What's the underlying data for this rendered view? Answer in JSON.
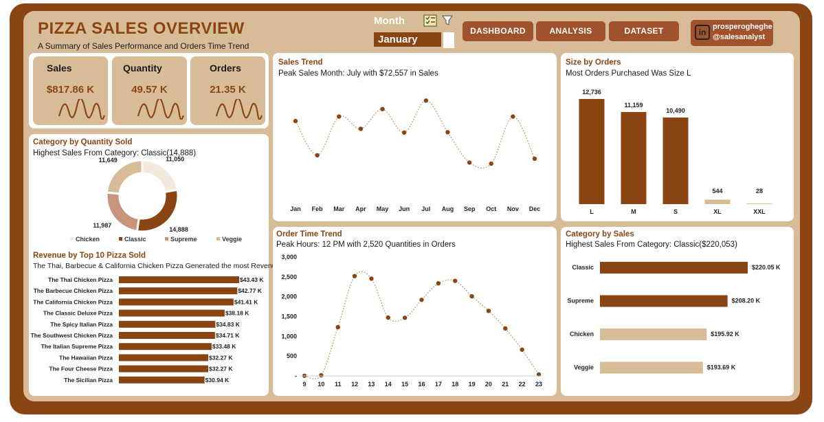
{
  "header": {
    "title": "PIZZA SALES OVERVIEW",
    "subtitle": "A Summary of Sales Performance and Orders Time Trend"
  },
  "slicer": {
    "label": "Month",
    "selected": "January"
  },
  "nav": {
    "dashboard": "DASHBOARD",
    "analysis": "ANALYSIS",
    "dataset": "DATASET"
  },
  "profile": {
    "name": "prosperogheghe",
    "handle": "@salesanalyst",
    "icon": "in"
  },
  "kpis": [
    {
      "label": "Sales",
      "value": "$817.86 K"
    },
    {
      "label": "Quantity",
      "value": "49.57 K"
    },
    {
      "label": "Orders",
      "value": "21.35 K"
    }
  ],
  "colors": {
    "brown": "#8b4513",
    "tan": "#d8bc97",
    "light_tan": "#f3e9dc",
    "mid_tan": "#c8a078"
  },
  "category_quantity": {
    "title": "Category by Quantity Sold",
    "subtitle": "Highest Sales From Category: Classic(14,888)"
  },
  "top10": {
    "title": "Revenue by Top  10 Pizza Sold",
    "subtitle": "The Thai, Barbecue & California Chicken Pizza Generated the most Revenue"
  },
  "sales_trend": {
    "title": "Sales Trend",
    "subtitle": "Peak Sales Month: July with $72,557 in Sales"
  },
  "order_time": {
    "title": "Order Time Trend",
    "subtitle": "Peak Hours: 12 PM with 2,520 Quantities in Orders"
  },
  "size_orders": {
    "title": "Size by Orders",
    "subtitle": "Most Orders Purchased Was Size L"
  },
  "category_sales": {
    "title": "Category by Sales",
    "subtitle": "Highest Sales From Category: Classic($220,053)"
  },
  "chart_data": [
    {
      "id": "category_quantity",
      "type": "pie",
      "categories": [
        "Chicken",
        "Classic",
        "Supreme",
        "Veggie"
      ],
      "values": [
        11050,
        14888,
        11987,
        11649
      ],
      "labels": [
        "11,050",
        "14,888",
        "11,987",
        "11,649"
      ],
      "colors": [
        "#f3e9dc",
        "#8b4513",
        "#c8957a",
        "#d8bc97"
      ],
      "legend": "bottom"
    },
    {
      "id": "top10",
      "type": "bar",
      "orientation": "horizontal",
      "categories": [
        "The Thai Chicken Pizza",
        "The Barbecue Chicken Pizza",
        "The California Chicken Pizza",
        "The Classic Deluxe Pizza",
        "The Spicy Italian Pizza",
        "The Southwest Chicken Pizza",
        "The Italian Supreme Pizza",
        "The Hawaiian Pizza",
        "The Four Cheese Pizza",
        "The Sicilian Pizza"
      ],
      "values": [
        43.43,
        42.77,
        41.41,
        38.18,
        34.83,
        34.71,
        33.48,
        32.27,
        32.27,
        30.94
      ],
      "labels": [
        "$43.43 K",
        "$42.77 K",
        "$41.41 K",
        "$38.18 K",
        "$34.83 K",
        "$34.71 K",
        "$33.48 K",
        "$32.27 K",
        "$32.27 K",
        "$30.94 K"
      ]
    },
    {
      "id": "sales_trend",
      "type": "line",
      "categories": [
        "Jan",
        "Feb",
        "Mar",
        "Apr",
        "May",
        "Jun",
        "Jul",
        "Aug",
        "Sep",
        "Oct",
        "Nov",
        "Dec"
      ],
      "values": [
        69793,
        65160,
        70397,
        68737,
        71403,
        68230,
        72557,
        68278,
        64180,
        64028,
        70395,
        64701
      ],
      "ylim": [
        62000,
        75000
      ],
      "grid": false
    },
    {
      "id": "order_time",
      "type": "line",
      "categories": [
        "9",
        "10",
        "11",
        "12",
        "13",
        "14",
        "15",
        "16",
        "17",
        "18",
        "19",
        "20",
        "21",
        "22",
        "23"
      ],
      "values": [
        4,
        18,
        1230,
        2520,
        2455,
        1472,
        1468,
        1920,
        2336,
        2399,
        2009,
        1642,
        1198,
        663,
        38
      ],
      "yticks": [
        "-",
        "500",
        "1,000",
        "1,500",
        "2,000",
        "2,500",
        "3,000"
      ],
      "ylim": [
        0,
        3000
      ],
      "grid": false
    },
    {
      "id": "size_orders",
      "type": "bar",
      "categories": [
        "L",
        "M",
        "S",
        "XL",
        "XXL"
      ],
      "values": [
        12736,
        11159,
        10490,
        544,
        28
      ],
      "labels": [
        "12,736",
        "11,159",
        "10,490",
        "544",
        "28"
      ],
      "colors": [
        "#8b4513",
        "#8b4513",
        "#8b4513",
        "#d8bc97",
        "#d8bc97"
      ]
    },
    {
      "id": "category_sales",
      "type": "bar",
      "orientation": "horizontal",
      "categories": [
        "Classic",
        "Supreme",
        "Chicken",
        "Veggie"
      ],
      "values": [
        220.05,
        208.2,
        195.92,
        193.69
      ],
      "labels": [
        "$220.05 K",
        "$208.20 K",
        "$195.92 K",
        "$193.69 K"
      ],
      "colors": [
        "#8b4513",
        "#8b4513",
        "#d8bc97",
        "#d8bc97"
      ]
    }
  ]
}
